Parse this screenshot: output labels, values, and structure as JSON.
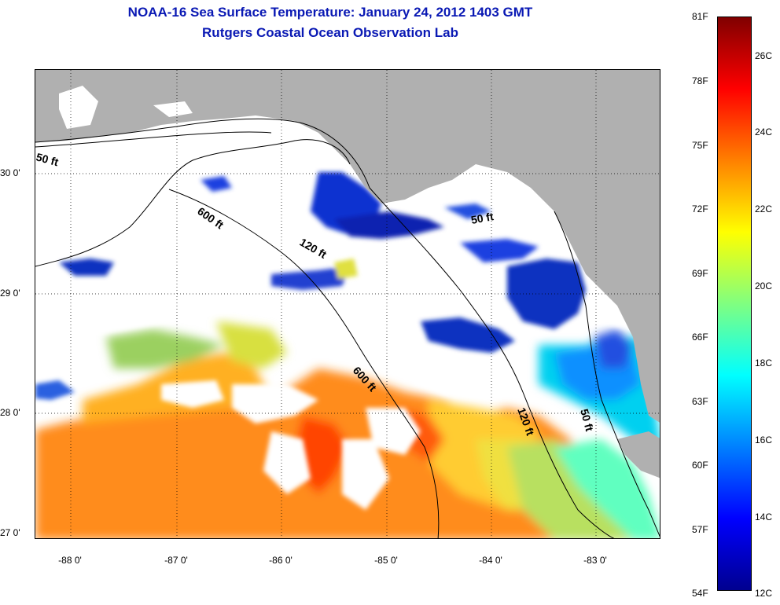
{
  "title_line1": "NOAA-16 Sea Surface Temperature:  January 24, 2012 1403 GMT",
  "title_line2": "Rutgers Coastal Ocean Observation Lab",
  "y_labels": [
    "30 0'",
    "29 0'",
    "28 0'",
    "27 0'"
  ],
  "x_labels": [
    "-88 0'",
    "-87 0'",
    "-86 0'",
    "-85 0'",
    "-84 0'",
    "-83 0'"
  ],
  "contour_labels": {
    "nw_50": "50 ft",
    "mid_600": "600 ft",
    "mid_120": "120 ft",
    "bay_50": "50 ft",
    "south_600": "600 ft",
    "east_120": "120 ft",
    "east_50": "50 ft"
  },
  "colorbar": {
    "fahrenheit": [
      "81F",
      "78F",
      "75F",
      "72F",
      "69F",
      "66F",
      "63F",
      "60F",
      "57F",
      "54F"
    ],
    "celsius": [
      "26C",
      "24C",
      "22C",
      "20C",
      "18C",
      "16C",
      "14C",
      "12C"
    ],
    "colors": [
      "#00008f",
      "#0000ff",
      "#0080ff",
      "#00ffff",
      "#80ff80",
      "#ffff00",
      "#ff8000",
      "#ff0000",
      "#800000"
    ]
  },
  "colors": {
    "title": "#0a19b4",
    "land": "#b0b0b0",
    "cloud": "#ffffff",
    "grid": "#000000"
  }
}
